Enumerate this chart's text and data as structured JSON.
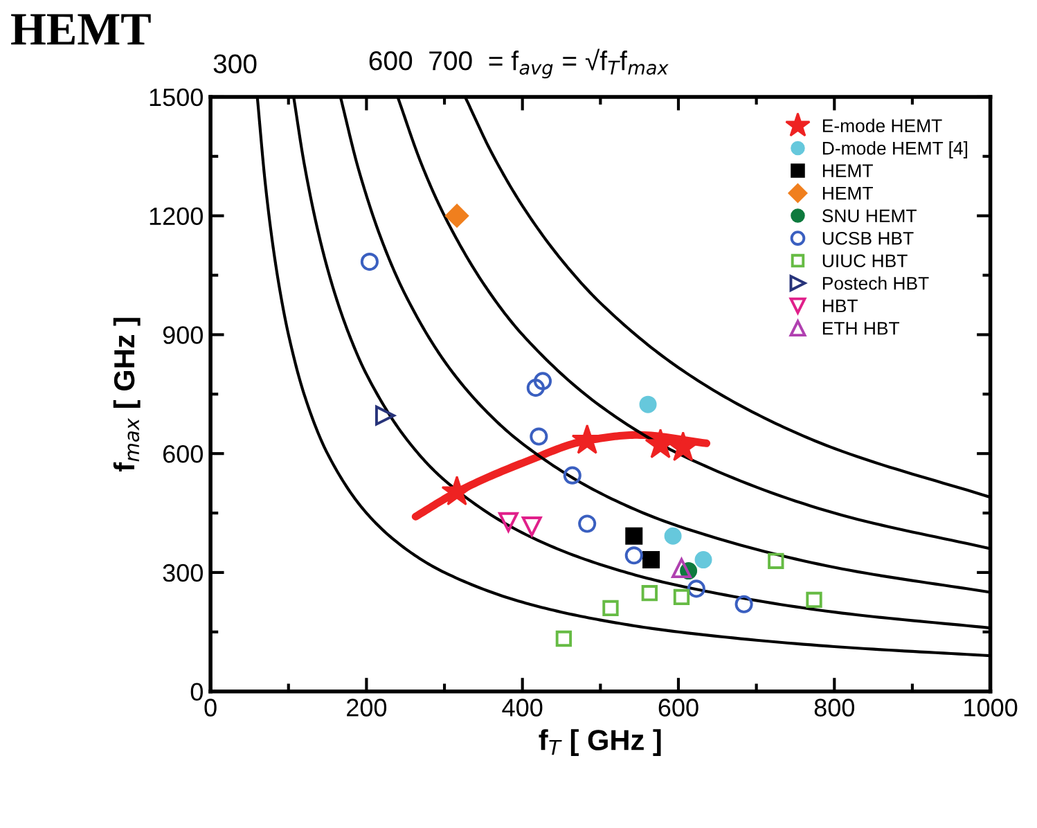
{
  "chart_data": {
    "type": "scatter",
    "title": "HEMT",
    "xlabel": "f$_{T}$ [ GHz ]",
    "ylabel": "f$_{max}$ [ GHz ]",
    "annotations": [
      "300",
      "600  700  = f$_{avg}$ = √f$_{T}$f$_{max}$"
    ],
    "xlim": [
      0,
      1000
    ],
    "xticks": [
      0,
      200,
      400,
      600,
      800,
      1000
    ],
    "ylim": [
      0,
      1500
    ],
    "yticks": [
      0,
      300,
      600,
      900,
      1200,
      1500
    ],
    "grid": false,
    "legend": "top right",
    "series": [
      {
        "name": "E-mode HEMT",
        "color": "#ee2222",
        "marker": "star",
        "x": [
          316,
          483,
          577,
          606
        ],
        "values": [
          503,
          633,
          622,
          615
        ]
      },
      {
        "name": "D-mode HEMT [4]",
        "color": "#66c8dc",
        "marker": "circle",
        "x": [
          561,
          593,
          632
        ],
        "values": [
          724,
          392,
          332
        ]
      },
      {
        "name": "HEMT",
        "color": "#000000",
        "marker": "square",
        "x": [
          543,
          565
        ],
        "values": [
          392,
          332
        ]
      },
      {
        "name": "HEMT",
        "color": "#f07f1e",
        "marker": "diamond",
        "x": [
          316
        ],
        "values": [
          1200
        ]
      },
      {
        "name": "SNU HEMT",
        "color": "#0e7a3e",
        "marker": "circle",
        "x": [
          613
        ],
        "values": [
          304
        ]
      },
      {
        "name": "UCSB HBT",
        "color": "#3a5fc0",
        "marker": "circle-open",
        "x": [
          204,
          417,
          426,
          421,
          464,
          483,
          543,
          623,
          684
        ],
        "values": [
          1084,
          766,
          783,
          643,
          545,
          423,
          343,
          259,
          220
        ]
      },
      {
        "name": "UIUC HBT",
        "color": "#66bb44",
        "marker": "square-open",
        "x": [
          513,
          453,
          563,
          604,
          725,
          774
        ],
        "values": [
          210,
          133,
          248,
          238,
          329,
          231
        ]
      },
      {
        "name": "Postech HBT",
        "color": "#27337a",
        "marker": "triangle-right-open",
        "x": [
          224
        ],
        "values": [
          696
        ]
      },
      {
        "name": "HBT",
        "color": "#e0208a",
        "marker": "triangle-down-open",
        "x": [
          382,
          412
        ],
        "values": [
          427,
          416
        ]
      },
      {
        "name": "ETH HBT",
        "color": "#b040b0",
        "marker": "triangle-open",
        "x": [
          604
        ],
        "values": [
          311
        ]
      },
      {
        "type": "line",
        "color": "#ee2222",
        "line_style": "solid",
        "x": [
          263,
          316,
          405,
          483,
          547,
          636
        ],
        "values": [
          441,
          503,
          580,
          633,
          647,
          626
        ]
      },
      {
        "type": "line",
        "color": "#000000",
        "line_style": "solid",
        "x": [
          60,
          70,
          80,
          90,
          100,
          120,
          150,
          200,
          250,
          300,
          400,
          500,
          600,
          800,
          1000
        ],
        "values": [
          1500,
          1286,
          1125,
          1000,
          900,
          750,
          600,
          450,
          360,
          300,
          225,
          180,
          150,
          113,
          90
        ]
      },
      {
        "type": "line",
        "color": "#000000",
        "line_style": "solid",
        "x": [
          107,
          120,
          140,
          160,
          180,
          200,
          250,
          300,
          400,
          500,
          600,
          800,
          1000
        ],
        "values": [
          1495,
          1333,
          1143,
          1000,
          889,
          800,
          640,
          533,
          400,
          320,
          267,
          200,
          160
        ]
      },
      {
        "type": "line",
        "color": "#000000",
        "line_style": "solid",
        "x": [
          167,
          190,
          220,
          250,
          300,
          350,
          400,
          500,
          600,
          800,
          1000
        ],
        "values": [
          1497,
          1316,
          1136,
          1000,
          833,
          714,
          625,
          500,
          417,
          313,
          250
        ]
      },
      {
        "type": "line",
        "color": "#000000",
        "line_style": "solid",
        "x": [
          240,
          270,
          300,
          350,
          400,
          500,
          600,
          800,
          1000
        ],
        "values": [
          1500,
          1333,
          1200,
          1029,
          900,
          720,
          600,
          450,
          360
        ]
      },
      {
        "type": "line",
        "color": "#000000",
        "line_style": "solid",
        "x": [
          327,
          360,
          400,
          450,
          500,
          600,
          700,
          800,
          1000
        ],
        "values": [
          1498,
          1361,
          1225,
          1089,
          980,
          817,
          700,
          613,
          490
        ]
      }
    ]
  }
}
